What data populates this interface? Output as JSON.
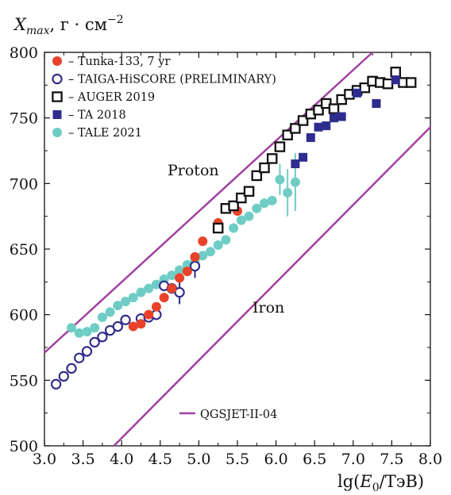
{
  "chart_data": {
    "type": "scatter",
    "xlabel": "lg(E_0/ТэВ)",
    "ylabel": "X_max, г · см^-2",
    "xlim": [
      3.0,
      8.0
    ],
    "ylim": [
      500,
      800
    ],
    "x_ticks": [
      "3.0",
      "3.5",
      "4.0",
      "4.5",
      "5.0",
      "5.5",
      "6.0",
      "6.5",
      "7.0",
      "7.5",
      "8.0"
    ],
    "y_ticks": [
      "500",
      "550",
      "600",
      "650",
      "700",
      "750",
      "800"
    ],
    "annotations": [
      "Proton",
      "Iron"
    ],
    "model_label": "QGSJET-II-04",
    "model_color": "#a040a0",
    "legend_position": "top-left",
    "lines": [
      {
        "name": "Proton",
        "color": "#a040a0",
        "x": [
          3.0,
          7.25
        ],
        "y": [
          571,
          800
        ]
      },
      {
        "name": "Iron",
        "color": "#a040a0",
        "x": [
          3.9,
          8.0
        ],
        "y": [
          500,
          743
        ]
      }
    ],
    "series": [
      {
        "name": "Tunka-133, 7 yr",
        "marker": "filled-circle",
        "color": "#e8432a",
        "x": [
          4.15,
          4.25,
          4.35,
          4.45,
          4.55,
          4.65,
          4.75,
          4.85,
          4.95,
          5.05,
          5.25,
          5.5
        ],
        "y": [
          591,
          593,
          600,
          606,
          613,
          620,
          628,
          633,
          644,
          656,
          670,
          679
        ]
      },
      {
        "name": "TAIGA-HiSCORE (PRELIMINARY)",
        "marker": "open-circle",
        "color": "#2f2a8a",
        "x": [
          3.15,
          3.25,
          3.35,
          3.45,
          3.55,
          3.65,
          3.75,
          3.85,
          3.95,
          4.05,
          4.25,
          4.35,
          4.45,
          4.55,
          4.65,
          4.75,
          4.95
        ],
        "y": [
          547,
          553,
          559,
          567,
          572,
          579,
          583,
          588,
          591,
          596,
          597,
          598,
          600,
          622,
          620,
          617,
          637
        ]
      },
      {
        "name": "AUGER 2019",
        "marker": "open-square",
        "color": "#111111",
        "x": [
          5.25,
          5.35,
          5.45,
          5.55,
          5.65,
          5.75,
          5.85,
          5.95,
          6.05,
          6.15,
          6.25,
          6.35,
          6.45,
          6.55,
          6.65,
          6.75,
          6.85,
          6.95,
          7.05,
          7.15,
          7.25,
          7.35,
          7.45,
          7.55,
          7.65,
          7.75
        ],
        "y": [
          666,
          681,
          683,
          689,
          694,
          706,
          712,
          719,
          728,
          737,
          742,
          748,
          753,
          756,
          761,
          757,
          764,
          768,
          771,
          773,
          778,
          777,
          776,
          785,
          777,
          777
        ]
      },
      {
        "name": "TA 2018",
        "marker": "filled-square",
        "color": "#2e2d8f",
        "x": [
          6.25,
          6.35,
          6.45,
          6.55,
          6.65,
          6.75,
          6.85,
          7.05,
          7.3,
          7.55
        ],
        "y": [
          715,
          720,
          735,
          743,
          744,
          750,
          751,
          769,
          761,
          779
        ]
      },
      {
        "name": "TALE 2021",
        "marker": "filled-circle",
        "color": "#6fcdc5",
        "x": [
          3.35,
          3.45,
          3.55,
          3.65,
          3.75,
          3.85,
          3.95,
          4.05,
          4.15,
          4.25,
          4.35,
          4.45,
          4.55,
          4.65,
          4.75,
          4.85,
          4.95,
          5.05,
          5.15,
          5.25,
          5.35,
          5.45,
          5.55,
          5.65,
          5.75,
          5.85,
          5.95,
          6.05,
          6.15,
          6.25
        ],
        "y": [
          590,
          586,
          587,
          590,
          598,
          602,
          607,
          610,
          613,
          617,
          620,
          623,
          627,
          630,
          634,
          638,
          641,
          645,
          648,
          653,
          657,
          666,
          672,
          675,
          681,
          685,
          687,
          703,
          693,
          701
        ],
        "yerr": [
          0,
          0,
          0,
          0,
          0,
          0,
          0,
          0,
          0,
          0,
          0,
          0,
          0,
          0,
          0,
          0,
          0,
          0,
          0,
          0,
          0,
          0,
          0,
          0,
          0,
          0,
          0,
          12,
          18,
          22
        ]
      }
    ]
  }
}
